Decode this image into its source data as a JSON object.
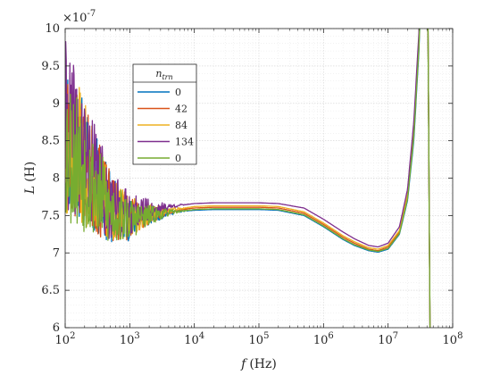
{
  "chart_data": {
    "type": "line",
    "title": "",
    "xlabel_var": "f",
    "xlabel_unit": "(Hz)",
    "ylabel_var": "L",
    "ylabel_unit": "(H)",
    "x_scale": "log",
    "xlim": [
      100,
      100000000
    ],
    "ylim": [
      6e-07,
      1e-06
    ],
    "y_exponent_label": "×10",
    "y_exponent": "-7",
    "x_ticks": [
      {
        "base": "10",
        "exp": "2",
        "value": 100
      },
      {
        "base": "10",
        "exp": "3",
        "value": 1000
      },
      {
        "base": "10",
        "exp": "4",
        "value": 10000
      },
      {
        "base": "10",
        "exp": "5",
        "value": 100000
      },
      {
        "base": "10",
        "exp": "6",
        "value": 1000000
      },
      {
        "base": "10",
        "exp": "7",
        "value": 10000000
      },
      {
        "base": "10",
        "exp": "8",
        "value": 100000000
      }
    ],
    "y_ticks": [
      {
        "label": "6",
        "value": 6e-07
      },
      {
        "label": "6.5",
        "value": 6.5e-07
      },
      {
        "label": "7",
        "value": 7e-07
      },
      {
        "label": "7.5",
        "value": 7.5e-07
      },
      {
        "label": "8",
        "value": 8e-07
      },
      {
        "label": "8.5",
        "value": 8.5e-07
      },
      {
        "label": "9",
        "value": 9e-07
      },
      {
        "label": "9.5",
        "value": 9.5e-07
      },
      {
        "label": "10",
        "value": 1e-06
      }
    ],
    "grid": true,
    "minor_grid": true,
    "legend": {
      "title_var": "n",
      "title_sub": "trn",
      "placement": "upper-left-inside"
    },
    "series": [
      {
        "name": "0",
        "color": "#0072BD",
        "noise_amp": 1.15e-07,
        "noise_seed": 11,
        "x": [
          100,
          200,
          300,
          500,
          1000,
          2000,
          5000,
          10000,
          20000,
          50000,
          100000,
          200000,
          500000,
          1000000,
          2000000,
          3000000,
          5000000,
          7000000,
          10000000,
          15000000,
          20000000,
          25000000,
          30000000,
          35000000,
          40000000,
          45000000
        ],
        "y": [
          8.6e-07,
          8.2e-07,
          7.9e-07,
          7.6e-07,
          7.45e-07,
          7.5e-07,
          7.55e-07,
          7.57e-07,
          7.58e-07,
          7.58e-07,
          7.58e-07,
          7.57e-07,
          7.5e-07,
          7.35e-07,
          7.18e-07,
          7.1e-07,
          7.03e-07,
          7.01e-07,
          7.05e-07,
          7.25e-07,
          7.7e-07,
          8.5e-07,
          9.7e-07,
          1.12e-06,
          1.2e-06,
          5.5e-07
        ]
      },
      {
        "name": "42",
        "color": "#D95319",
        "noise_amp": 1.15e-07,
        "noise_seed": 23,
        "x": [
          100,
          200,
          300,
          500,
          1000,
          2000,
          5000,
          10000,
          20000,
          50000,
          100000,
          200000,
          500000,
          1000000,
          2000000,
          3000000,
          5000000,
          7000000,
          10000000,
          15000000,
          20000000,
          25000000,
          30000000,
          35000000,
          40000000,
          45000000
        ],
        "y": [
          8.6e-07,
          8.2e-07,
          7.9e-07,
          7.6e-07,
          7.47e-07,
          7.52e-07,
          7.57e-07,
          7.6e-07,
          7.61e-07,
          7.61e-07,
          7.61e-07,
          7.6e-07,
          7.53e-07,
          7.38e-07,
          7.21e-07,
          7.13e-07,
          7.05e-07,
          7.03e-07,
          7.08e-07,
          7.28e-07,
          7.75e-07,
          8.6e-07,
          9.8e-07,
          1.13e-06,
          1.2e-06,
          5.5e-07
        ]
      },
      {
        "name": "84",
        "color": "#EDB120",
        "noise_amp": 1.15e-07,
        "noise_seed": 37,
        "x": [
          100,
          200,
          300,
          500,
          1000,
          2000,
          5000,
          10000,
          20000,
          50000,
          100000,
          200000,
          500000,
          1000000,
          2000000,
          3000000,
          5000000,
          7000000,
          10000000,
          15000000,
          20000000,
          25000000,
          30000000,
          35000000,
          40000000,
          45000000
        ],
        "y": [
          8.6e-07,
          8.2e-07,
          7.9e-07,
          7.6e-07,
          7.48e-07,
          7.53e-07,
          7.58e-07,
          7.62e-07,
          7.63e-07,
          7.63e-07,
          7.63e-07,
          7.62e-07,
          7.55e-07,
          7.4e-07,
          7.23e-07,
          7.15e-07,
          7.07e-07,
          7.05e-07,
          7.1e-07,
          7.3e-07,
          7.78e-07,
          8.65e-07,
          9.85e-07,
          1.14e-06,
          1.2e-06,
          5.5e-07
        ]
      },
      {
        "name": "134",
        "color": "#7E2F8E",
        "noise_amp": 1.15e-07,
        "noise_seed": 41,
        "x": [
          100,
          200,
          300,
          500,
          1000,
          2000,
          5000,
          10000,
          20000,
          50000,
          100000,
          200000,
          500000,
          1000000,
          2000000,
          3000000,
          5000000,
          7000000,
          10000000,
          15000000,
          20000000,
          25000000,
          30000000,
          35000000,
          40000000,
          45000000
        ],
        "y": [
          8.7e-07,
          8.3e-07,
          8e-07,
          7.65e-07,
          7.52e-07,
          7.58e-07,
          7.63e-07,
          7.66e-07,
          7.67e-07,
          7.67e-07,
          7.67e-07,
          7.66e-07,
          7.6e-07,
          7.45e-07,
          7.28e-07,
          7.19e-07,
          7.1e-07,
          7.08e-07,
          7.13e-07,
          7.35e-07,
          7.85e-07,
          8.75e-07,
          9.95e-07,
          1.15e-06,
          1.2e-06,
          5.5e-07
        ]
      },
      {
        "name": "0",
        "color": "#77AC30",
        "noise_amp": 1.15e-07,
        "noise_seed": 53,
        "x": [
          100,
          200,
          300,
          500,
          1000,
          2000,
          5000,
          10000,
          20000,
          50000,
          100000,
          200000,
          500000,
          1000000,
          2000000,
          3000000,
          5000000,
          7000000,
          10000000,
          15000000,
          20000000,
          25000000,
          30000000,
          35000000,
          40000000,
          45000000
        ],
        "y": [
          8.5e-07,
          8.1e-07,
          7.85e-07,
          7.55e-07,
          7.45e-07,
          7.5e-07,
          7.55e-07,
          7.58e-07,
          7.59e-07,
          7.59e-07,
          7.59e-07,
          7.58e-07,
          7.51e-07,
          7.36e-07,
          7.19e-07,
          7.11e-07,
          7.04e-07,
          7.02e-07,
          7.06e-07,
          7.26e-07,
          7.72e-07,
          8.55e-07,
          9.75e-07,
          1.12e-06,
          1.2e-06,
          5.5e-07
        ]
      }
    ]
  }
}
